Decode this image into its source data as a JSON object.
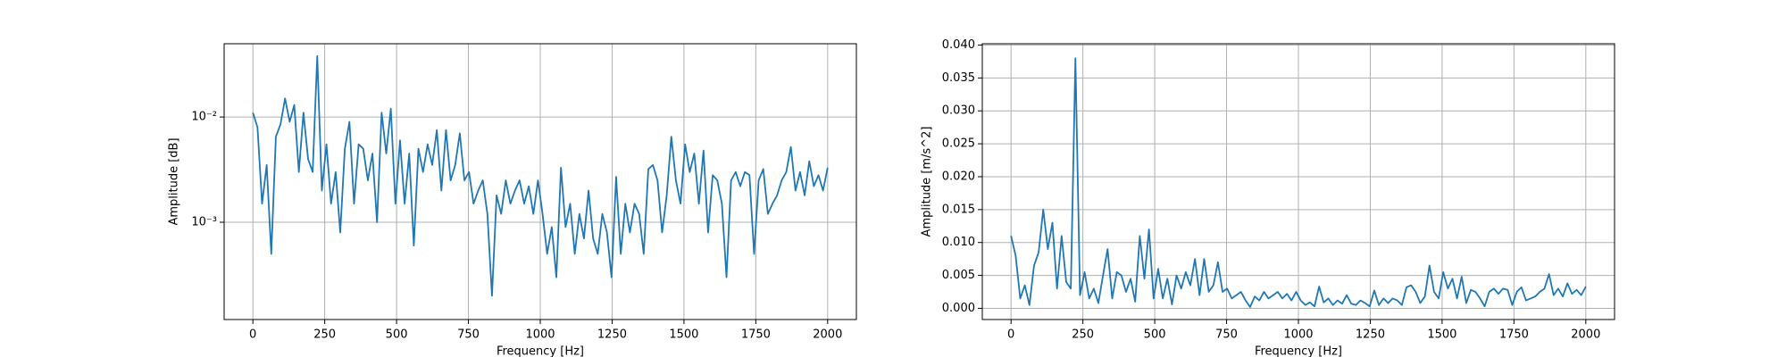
{
  "chart_data": [
    {
      "type": "line",
      "xlabel": "Frequency [Hz]",
      "ylabel": "Amplitude [dB]",
      "log_y": true,
      "grid": true,
      "xlim": [
        -100,
        2100
      ],
      "xticks": [
        0,
        250,
        500,
        750,
        1000,
        1250,
        1500,
        1750,
        2000
      ],
      "ylim": [
        0.000119,
        0.0497
      ],
      "yticks": [
        {
          "value": 0.001,
          "label": "10⁻³"
        },
        {
          "value": 0.01,
          "label": "10⁻²"
        }
      ],
      "x": [
        0,
        16,
        32,
        48,
        64,
        80,
        96,
        112,
        128,
        144,
        160,
        176,
        192,
        208,
        224,
        240,
        256,
        272,
        288,
        304,
        320,
        336,
        352,
        368,
        384,
        400,
        416,
        432,
        448,
        464,
        480,
        496,
        512,
        528,
        544,
        560,
        576,
        592,
        608,
        624,
        640,
        656,
        672,
        688,
        704,
        720,
        736,
        752,
        768,
        784,
        800,
        816,
        832,
        848,
        864,
        880,
        896,
        912,
        928,
        944,
        960,
        976,
        992,
        1008,
        1024,
        1040,
        1056,
        1072,
        1088,
        1104,
        1120,
        1136,
        1152,
        1168,
        1184,
        1200,
        1216,
        1232,
        1248,
        1264,
        1280,
        1296,
        1312,
        1328,
        1344,
        1360,
        1376,
        1392,
        1408,
        1424,
        1440,
        1456,
        1472,
        1488,
        1504,
        1520,
        1536,
        1552,
        1568,
        1584,
        1600,
        1616,
        1632,
        1648,
        1664,
        1680,
        1696,
        1712,
        1728,
        1744,
        1760,
        1776,
        1792,
        1808,
        1824,
        1840,
        1856,
        1872,
        1888,
        1904,
        1920,
        1936,
        1952,
        1968,
        1984,
        2000
      ],
      "series": [
        {
          "color": "#1f77b4",
          "values": [
            0.011,
            0.008,
            0.0015,
            0.0035,
            0.0005,
            0.0065,
            0.0085,
            0.015,
            0.009,
            0.013,
            0.003,
            0.011,
            0.004,
            0.003,
            0.038,
            0.002,
            0.0055,
            0.0015,
            0.003,
            0.0008,
            0.005,
            0.009,
            0.0015,
            0.0055,
            0.005,
            0.0025,
            0.0045,
            0.001,
            0.011,
            0.0045,
            0.012,
            0.0015,
            0.006,
            0.0015,
            0.0045,
            0.0006,
            0.005,
            0.003,
            0.0055,
            0.0035,
            0.0075,
            0.002,
            0.0075,
            0.0025,
            0.0035,
            0.007,
            0.0025,
            0.003,
            0.0015,
            0.002,
            0.0025,
            0.0012,
            0.0002,
            0.0018,
            0.0012,
            0.0025,
            0.0015,
            0.002,
            0.0025,
            0.0015,
            0.0022,
            0.0012,
            0.0025,
            0.0012,
            0.0005,
            0.0009,
            0.0003,
            0.0033,
            0.0009,
            0.0015,
            0.0005,
            0.0012,
            0.0007,
            0.002,
            0.0007,
            0.0005,
            0.0012,
            0.0008,
            0.0003,
            0.0027,
            0.0005,
            0.0015,
            0.0008,
            0.0015,
            0.0012,
            0.0005,
            0.0032,
            0.0035,
            0.0025,
            0.0008,
            0.0018,
            0.0065,
            0.0025,
            0.0015,
            0.0055,
            0.003,
            0.0045,
            0.0015,
            0.0048,
            0.0008,
            0.0028,
            0.0025,
            0.0015,
            0.0003,
            0.0025,
            0.003,
            0.0022,
            0.003,
            0.0028,
            0.0005,
            0.0025,
            0.0032,
            0.0012,
            0.0015,
            0.0018,
            0.0025,
            0.003,
            0.0052,
            0.002,
            0.003,
            0.0018,
            0.0038,
            0.0022,
            0.0028,
            0.002,
            0.0033
          ]
        }
      ]
    },
    {
      "type": "line",
      "xlabel": "Frequency [Hz]",
      "ylabel": "Amplitude [m/s^2]",
      "log_y": false,
      "grid": true,
      "xlim": [
        -100,
        2100
      ],
      "xticks": [
        0,
        250,
        500,
        750,
        1000,
        1250,
        1500,
        1750,
        2000
      ],
      "ylim": [
        -0.0017,
        0.0402
      ],
      "yticks": [
        {
          "value": 0,
          "label": "0.000"
        },
        {
          "value": 0.005,
          "label": "0.005"
        },
        {
          "value": 0.01,
          "label": "0.010"
        },
        {
          "value": 0.015,
          "label": "0.015"
        },
        {
          "value": 0.02,
          "label": "0.020"
        },
        {
          "value": 0.025,
          "label": "0.025"
        },
        {
          "value": 0.03,
          "label": "0.030"
        },
        {
          "value": 0.035,
          "label": "0.035"
        },
        {
          "value": 0.04,
          "label": "0.040"
        }
      ],
      "x": [
        0,
        16,
        32,
        48,
        64,
        80,
        96,
        112,
        128,
        144,
        160,
        176,
        192,
        208,
        224,
        240,
        256,
        272,
        288,
        304,
        320,
        336,
        352,
        368,
        384,
        400,
        416,
        432,
        448,
        464,
        480,
        496,
        512,
        528,
        544,
        560,
        576,
        592,
        608,
        624,
        640,
        656,
        672,
        688,
        704,
        720,
        736,
        752,
        768,
        784,
        800,
        816,
        832,
        848,
        864,
        880,
        896,
        912,
        928,
        944,
        960,
        976,
        992,
        1008,
        1024,
        1040,
        1056,
        1072,
        1088,
        1104,
        1120,
        1136,
        1152,
        1168,
        1184,
        1200,
        1216,
        1232,
        1248,
        1264,
        1280,
        1296,
        1312,
        1328,
        1344,
        1360,
        1376,
        1392,
        1408,
        1424,
        1440,
        1456,
        1472,
        1488,
        1504,
        1520,
        1536,
        1552,
        1568,
        1584,
        1600,
        1616,
        1632,
        1648,
        1664,
        1680,
        1696,
        1712,
        1728,
        1744,
        1760,
        1776,
        1792,
        1808,
        1824,
        1840,
        1856,
        1872,
        1888,
        1904,
        1920,
        1936,
        1952,
        1968,
        1984,
        2000
      ],
      "series": [
        {
          "color": "#1f77b4",
          "values": [
            0.011,
            0.008,
            0.0015,
            0.0035,
            0.0005,
            0.0065,
            0.0085,
            0.015,
            0.009,
            0.013,
            0.003,
            0.011,
            0.004,
            0.003,
            0.038,
            0.002,
            0.0055,
            0.0015,
            0.003,
            0.0008,
            0.005,
            0.009,
            0.0015,
            0.0055,
            0.005,
            0.0025,
            0.0045,
            0.001,
            0.011,
            0.0045,
            0.012,
            0.0015,
            0.006,
            0.0015,
            0.0045,
            0.0006,
            0.005,
            0.003,
            0.0055,
            0.0035,
            0.0075,
            0.002,
            0.0075,
            0.0025,
            0.0035,
            0.007,
            0.0025,
            0.003,
            0.0015,
            0.002,
            0.0025,
            0.0012,
            0.0002,
            0.0018,
            0.0012,
            0.0025,
            0.0015,
            0.002,
            0.0025,
            0.0015,
            0.0022,
            0.0012,
            0.0025,
            0.0012,
            0.0005,
            0.0009,
            0.0003,
            0.0033,
            0.0009,
            0.0015,
            0.0005,
            0.0012,
            0.0007,
            0.002,
            0.0007,
            0.0005,
            0.0012,
            0.0008,
            0.0003,
            0.0027,
            0.0005,
            0.0015,
            0.0008,
            0.0015,
            0.0012,
            0.0005,
            0.0032,
            0.0035,
            0.0025,
            0.0008,
            0.0018,
            0.0065,
            0.0025,
            0.0015,
            0.0055,
            0.003,
            0.0045,
            0.0015,
            0.0048,
            0.0008,
            0.0028,
            0.0025,
            0.0015,
            0.0003,
            0.0025,
            0.003,
            0.0022,
            0.003,
            0.0028,
            0.0005,
            0.0025,
            0.0032,
            0.0012,
            0.0015,
            0.0018,
            0.0025,
            0.003,
            0.0052,
            0.002,
            0.003,
            0.0018,
            0.0038,
            0.0022,
            0.0028,
            0.002,
            0.0033
          ]
        }
      ]
    }
  ]
}
